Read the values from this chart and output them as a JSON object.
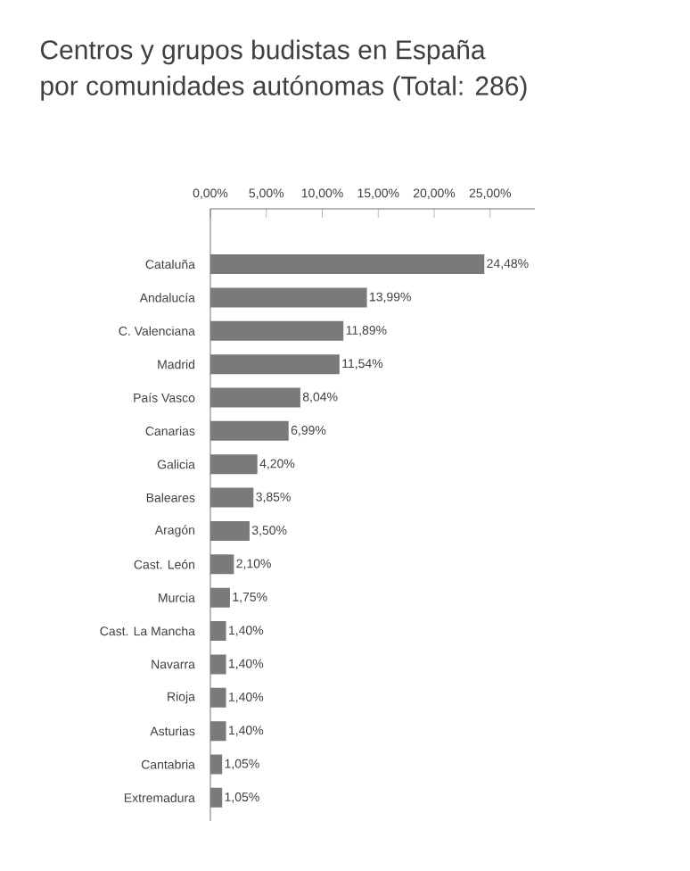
{
  "chart_data": {
    "type": "bar",
    "orientation": "horizontal",
    "title": "Centros y grupos budistas en España",
    "subtitle": "por comunidades autónomas  (Total: 286)",
    "categories": [
      "Cataluña",
      "Andalucía",
      "C. Valenciana",
      "Madrid",
      "País Vasco",
      "Canarias",
      "Galicia",
      "Baleares",
      "Aragón",
      "Cast. León",
      "Murcia",
      "Cast. La Mancha",
      "Navarra",
      "Rioja",
      "Asturias",
      "Cantabria",
      "Extremadura"
    ],
    "values": [
      24.48,
      13.99,
      11.89,
      11.54,
      8.04,
      6.99,
      4.2,
      3.85,
      3.5,
      2.1,
      1.75,
      1.4,
      1.4,
      1.4,
      1.4,
      1.05,
      1.05
    ],
    "value_labels": [
      "24,48%",
      "13,99%",
      "11,89%",
      "11,54%",
      "8,04%",
      "6,99%",
      "4,20%",
      "3,85%",
      "3,50%",
      "2,10%",
      "1,75%",
      "1,40%",
      "1,40%",
      "1,40%",
      "1,40%",
      "1,05%",
      "1,05%"
    ],
    "color": "#7a7a7a",
    "xlim": [
      0,
      29
    ],
    "xticks": [
      {
        "value": 0,
        "label": "0,00%"
      },
      {
        "value": 5,
        "label": "5,00%"
      },
      {
        "value": 10,
        "label": "10,00%"
      },
      {
        "value": 15,
        "label": "15,00%"
      },
      {
        "value": 20,
        "label": "20,00%"
      },
      {
        "value": 25,
        "label": "25,00%"
      }
    ],
    "grid": false
  }
}
